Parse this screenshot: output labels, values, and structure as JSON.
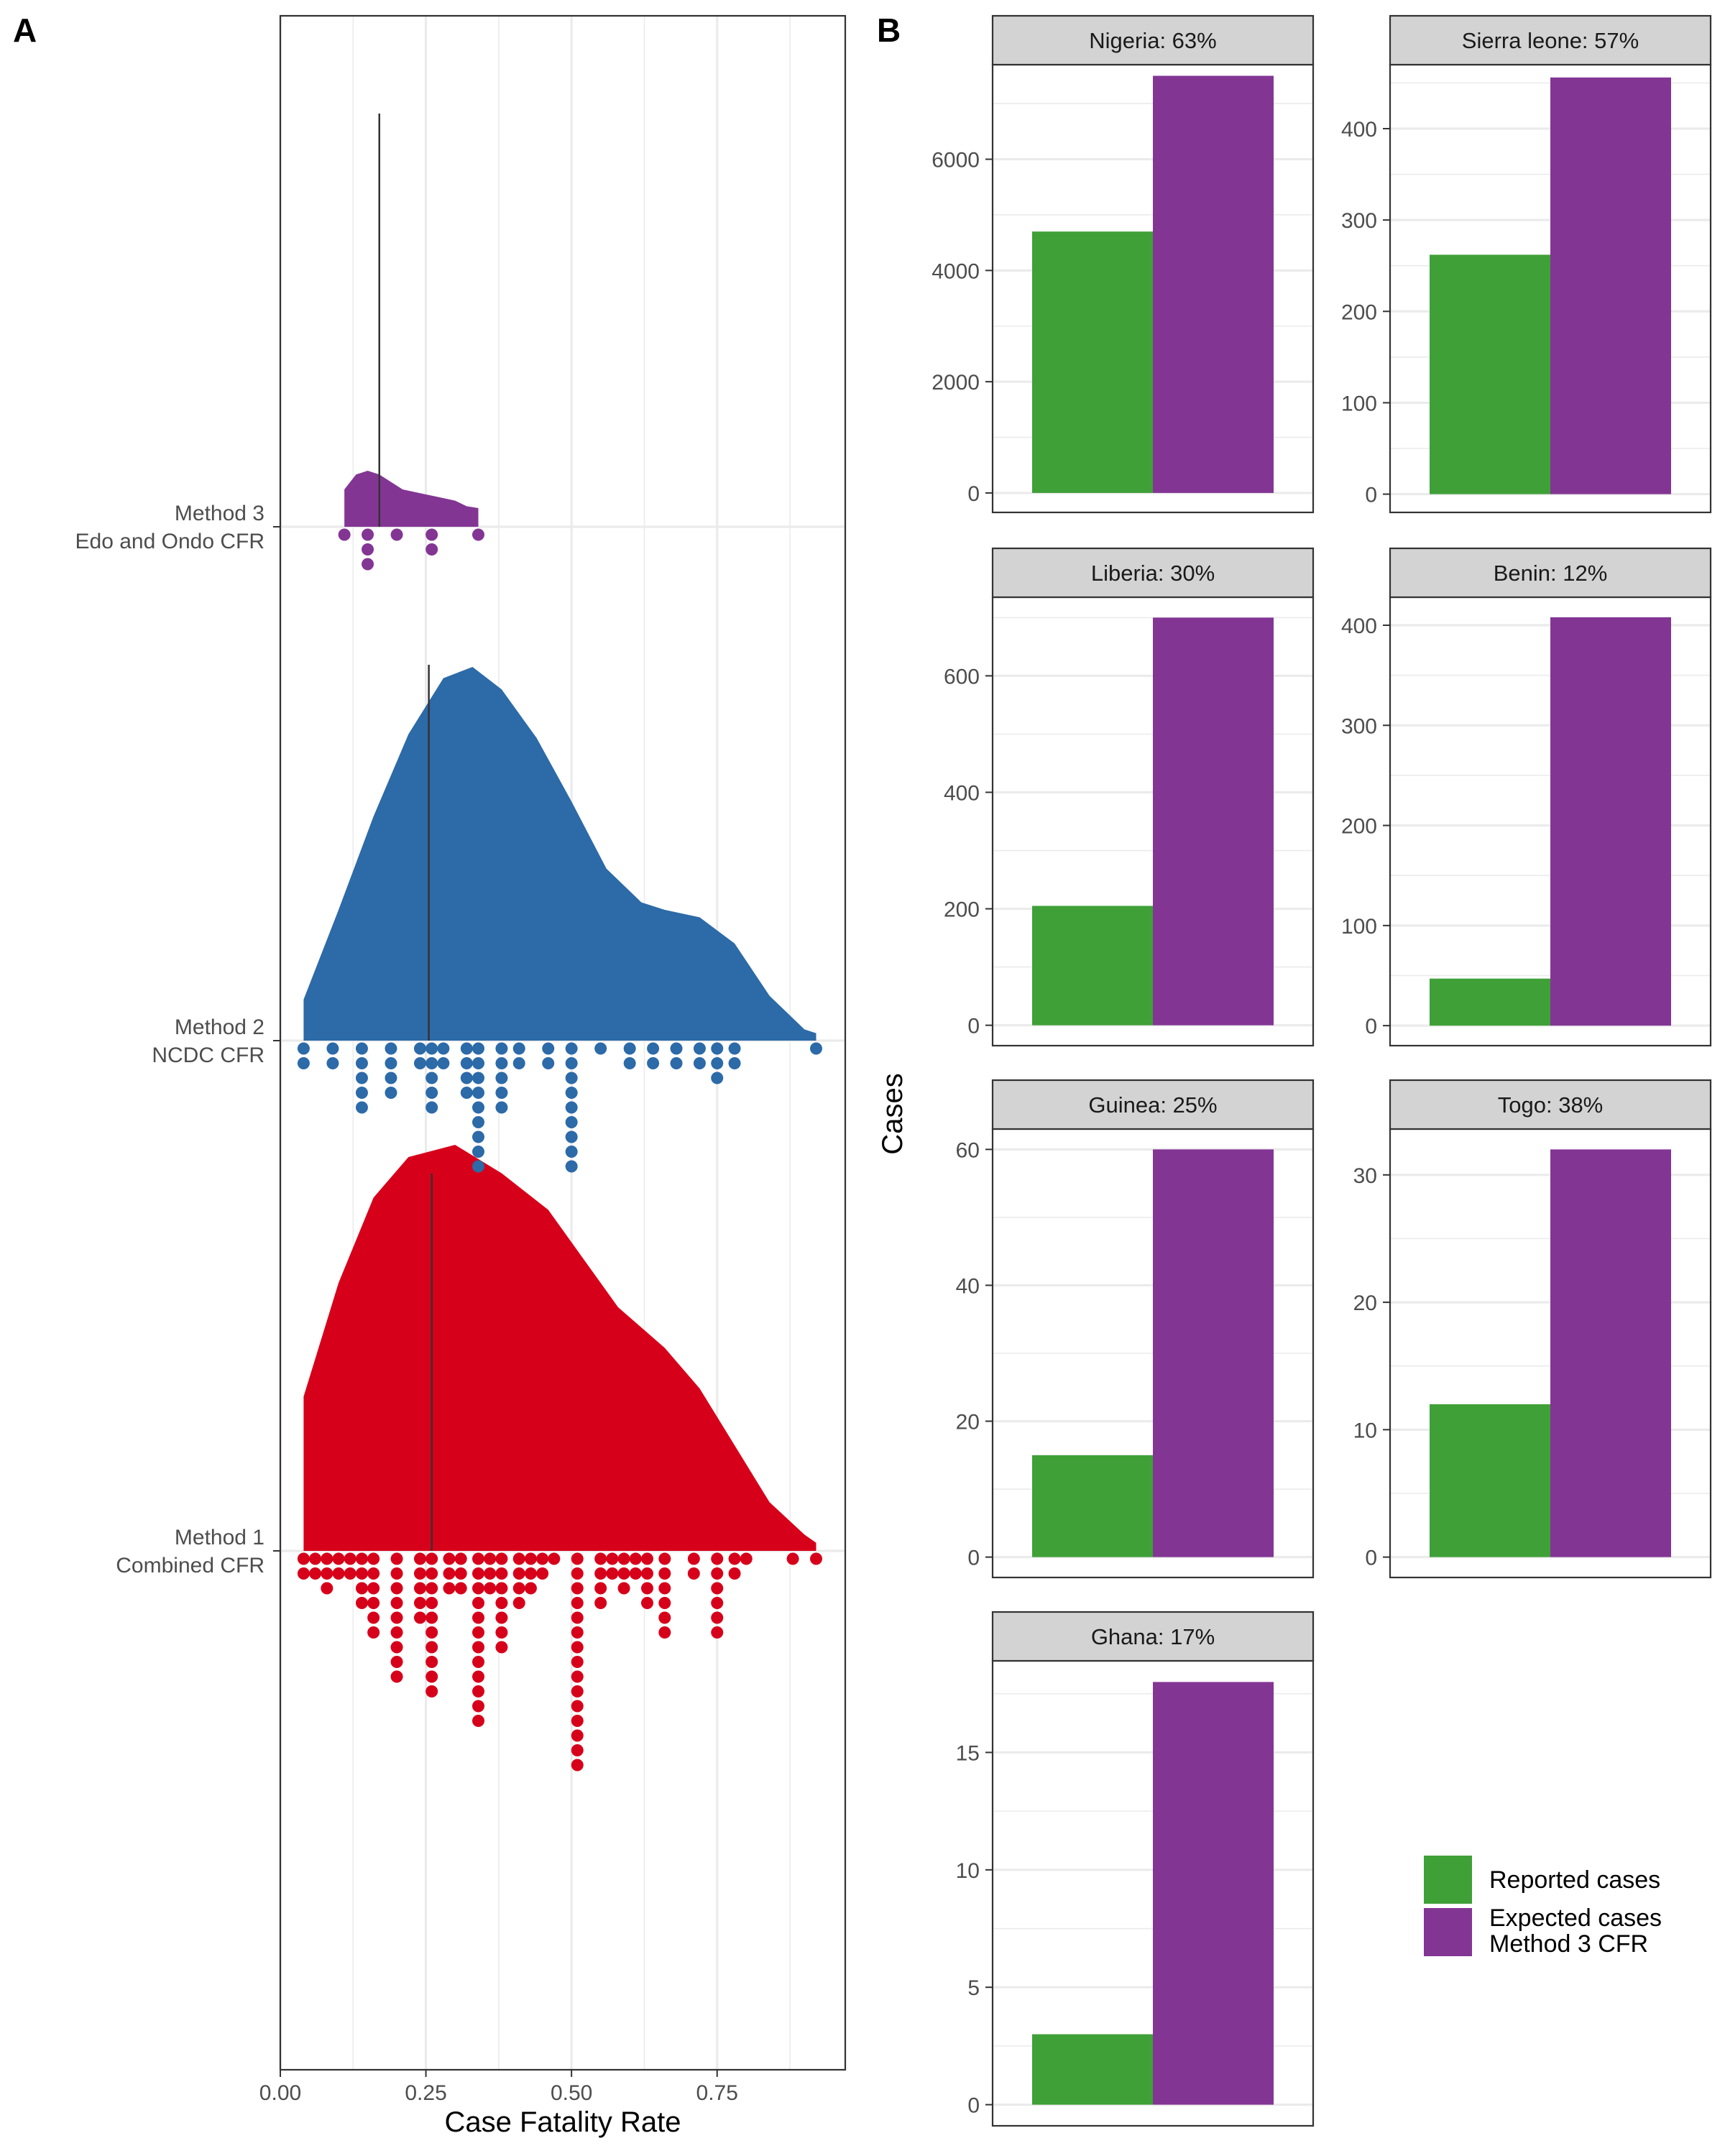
{
  "panel_labels": {
    "a": "A",
    "b": "B"
  },
  "colors": {
    "method1": "#D7001A",
    "method2": "#2C6AA8",
    "method3": "#833594",
    "reported": "#3FA038",
    "expected": "#833594",
    "strip_bg": "#D3D3D3",
    "grid": "#EBEBEB"
  },
  "chart_data": [
    {
      "panel": "A",
      "type": "density with dot plot",
      "xlabel": "Case Fatality Rate",
      "ylabel": "",
      "xlim": [
        0,
        0.97
      ],
      "xticks": [
        0,
        0.25,
        0.5,
        0.75
      ],
      "xtick_labels": [
        "0.00",
        "0.25",
        "0.50",
        "0.75"
      ],
      "grid": true,
      "series": [
        {
          "key": "method1",
          "label_line1": "Method 1",
          "label_line2": "Combined CFR",
          "color": "#D7001A",
          "median": 0.26,
          "density_range": [
            0.04,
            0.92
          ],
          "density": [
            [
              0.04,
              0.38
            ],
            [
              0.1,
              0.66
            ],
            [
              0.16,
              0.87
            ],
            [
              0.22,
              0.97
            ],
            [
              0.3,
              1.0
            ],
            [
              0.38,
              0.93
            ],
            [
              0.46,
              0.84
            ],
            [
              0.52,
              0.72
            ],
            [
              0.58,
              0.6
            ],
            [
              0.66,
              0.5
            ],
            [
              0.72,
              0.4
            ],
            [
              0.78,
              0.26
            ],
            [
              0.84,
              0.12
            ],
            [
              0.9,
              0.04
            ],
            [
              0.92,
              0.02
            ]
          ],
          "dots": [
            [
              0.04,
              2
            ],
            [
              0.06,
              2
            ],
            [
              0.08,
              3
            ],
            [
              0.1,
              2
            ],
            [
              0.12,
              2
            ],
            [
              0.14,
              4
            ],
            [
              0.16,
              6
            ],
            [
              0.2,
              9
            ],
            [
              0.24,
              5
            ],
            [
              0.26,
              10
            ],
            [
              0.29,
              3
            ],
            [
              0.31,
              3
            ],
            [
              0.34,
              12
            ],
            [
              0.36,
              3
            ],
            [
              0.38,
              7
            ],
            [
              0.41,
              4
            ],
            [
              0.43,
              3
            ],
            [
              0.45,
              2
            ],
            [
              0.47,
              1
            ],
            [
              0.51,
              15
            ],
            [
              0.55,
              4
            ],
            [
              0.57,
              2
            ],
            [
              0.59,
              3
            ],
            [
              0.61,
              2
            ],
            [
              0.63,
              4
            ],
            [
              0.66,
              6
            ],
            [
              0.71,
              2
            ],
            [
              0.75,
              6
            ],
            [
              0.78,
              2
            ],
            [
              0.8,
              1
            ],
            [
              0.88,
              1
            ],
            [
              0.92,
              1
            ]
          ]
        },
        {
          "key": "method2",
          "label_line1": "Method 2",
          "label_line2": "NCDC CFR",
          "color": "#2C6AA8",
          "median": 0.255,
          "density_range": [
            0.04,
            0.92
          ],
          "density": [
            [
              0.04,
              0.11
            ],
            [
              0.1,
              0.35
            ],
            [
              0.16,
              0.6
            ],
            [
              0.22,
              0.82
            ],
            [
              0.28,
              0.97
            ],
            [
              0.33,
              1.0
            ],
            [
              0.38,
              0.94
            ],
            [
              0.44,
              0.81
            ],
            [
              0.5,
              0.64
            ],
            [
              0.56,
              0.46
            ],
            [
              0.62,
              0.37
            ],
            [
              0.66,
              0.35
            ],
            [
              0.72,
              0.33
            ],
            [
              0.78,
              0.26
            ],
            [
              0.84,
              0.12
            ],
            [
              0.9,
              0.03
            ],
            [
              0.92,
              0.02
            ]
          ],
          "dots": [
            [
              0.04,
              2
            ],
            [
              0.09,
              2
            ],
            [
              0.14,
              5
            ],
            [
              0.19,
              4
            ],
            [
              0.24,
              2
            ],
            [
              0.26,
              5
            ],
            [
              0.28,
              2
            ],
            [
              0.32,
              4
            ],
            [
              0.34,
              9
            ],
            [
              0.38,
              5
            ],
            [
              0.41,
              2
            ],
            [
              0.46,
              2
            ],
            [
              0.5,
              9
            ],
            [
              0.55,
              1
            ],
            [
              0.6,
              2
            ],
            [
              0.64,
              2
            ],
            [
              0.68,
              2
            ],
            [
              0.72,
              2
            ],
            [
              0.75,
              3
            ],
            [
              0.78,
              2
            ],
            [
              0.92,
              1
            ]
          ]
        },
        {
          "key": "method3",
          "label_line1": "Method 3",
          "label_line2": "Edo and Ondo CFR",
          "color": "#833594",
          "median": 0.17,
          "density_range": [
            0.11,
            0.34
          ],
          "density": [
            [
              0.11,
              0.1
            ],
            [
              0.13,
              0.14
            ],
            [
              0.15,
              0.15
            ],
            [
              0.17,
              0.14
            ],
            [
              0.19,
              0.12
            ],
            [
              0.21,
              0.1
            ],
            [
              0.24,
              0.09
            ],
            [
              0.27,
              0.08
            ],
            [
              0.3,
              0.07
            ],
            [
              0.32,
              0.055
            ],
            [
              0.34,
              0.05
            ]
          ],
          "dots": [
            [
              0.11,
              1
            ],
            [
              0.15,
              3
            ],
            [
              0.2,
              1
            ],
            [
              0.26,
              2
            ],
            [
              0.34,
              1
            ]
          ]
        }
      ]
    },
    {
      "panel": "B",
      "type": "bar",
      "ylabel": "Cases",
      "legend": {
        "position": "bottom-right",
        "items": [
          {
            "line1": "Reported cases",
            "line2": "",
            "color": "#3FA038"
          },
          {
            "line1": "Expected cases",
            "line2": "Method 3 CFR",
            "color": "#833594"
          }
        ]
      },
      "facets": [
        {
          "title": "Nigeria: 63%",
          "reported": 4700,
          "expected": 7500,
          "ylim": [
            -350,
            7700
          ],
          "yticks": [
            0,
            2000,
            4000,
            6000
          ],
          "ytick_labels": [
            "0",
            "2000",
            "4000",
            "6000"
          ]
        },
        {
          "title": "Sierra leone: 57%",
          "reported": 262,
          "expected": 456,
          "ylim": [
            -20,
            470
          ],
          "yticks": [
            0,
            100,
            200,
            300,
            400
          ],
          "ytick_labels": [
            "0",
            "100",
            "200",
            "300",
            "400"
          ]
        },
        {
          "title": "Liberia: 30%",
          "reported": 205,
          "expected": 700,
          "ylim": [
            -35,
            735
          ],
          "yticks": [
            0,
            200,
            400,
            600
          ],
          "ytick_labels": [
            "0",
            "200",
            "400",
            "600"
          ]
        },
        {
          "title": "Benin: 12%",
          "reported": 47,
          "expected": 408,
          "ylim": [
            -20,
            428
          ],
          "yticks": [
            0,
            100,
            200,
            300,
            400
          ],
          "ytick_labels": [
            "0",
            "100",
            "200",
            "300",
            "400"
          ]
        },
        {
          "title": "Guinea: 25%",
          "reported": 15,
          "expected": 60,
          "ylim": [
            -3,
            63
          ],
          "yticks": [
            0,
            20,
            40,
            60
          ],
          "ytick_labels": [
            "0",
            "20",
            "40",
            "60"
          ]
        },
        {
          "title": "Togo: 38%",
          "reported": 12,
          "expected": 32,
          "ylim": [
            -1.6,
            33.6
          ],
          "yticks": [
            0,
            10,
            20,
            30
          ],
          "ytick_labels": [
            "0",
            "10",
            "20",
            "30"
          ]
        },
        {
          "title": "Ghana: 17%",
          "reported": 3,
          "expected": 18,
          "ylim": [
            -0.9,
            18.9
          ],
          "yticks": [
            0,
            5,
            10,
            15
          ],
          "ytick_labels": [
            "0",
            "5",
            "10",
            "15"
          ]
        }
      ]
    }
  ]
}
